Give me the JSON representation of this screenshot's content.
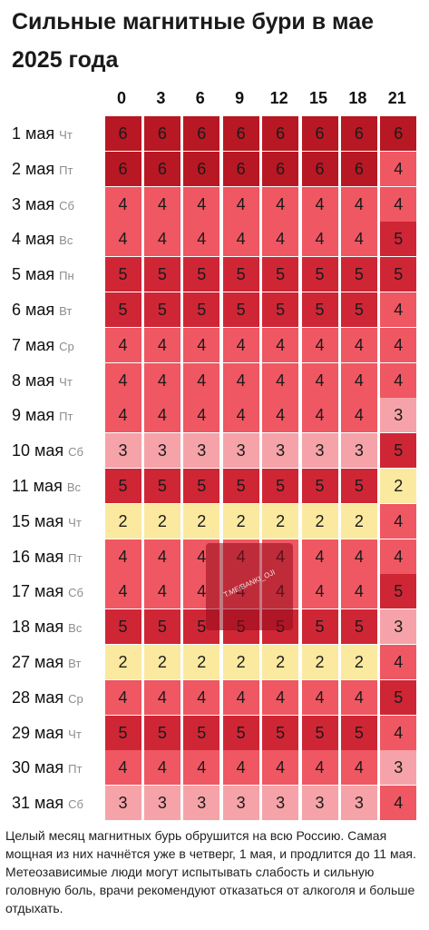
{
  "colors": {
    "2": "#fbe9a0",
    "3": "#f5a3a8",
    "4": "#ef5762",
    "5": "#cf2636",
    "6": "#b81823"
  },
  "chart_data": {
    "type": "heatmap",
    "title": "Сильные магнитные бури в мае 2025 года",
    "xlabel": "",
    "ylabel": "",
    "columns": [
      "0",
      "3",
      "6",
      "9",
      "12",
      "15",
      "18",
      "21"
    ],
    "rows": [
      {
        "date": "1 мая",
        "dow": "Чт",
        "values": [
          6,
          6,
          6,
          6,
          6,
          6,
          6,
          6
        ]
      },
      {
        "date": "2 мая",
        "dow": "Пт",
        "values": [
          6,
          6,
          6,
          6,
          6,
          6,
          6,
          4
        ]
      },
      {
        "date": "3 мая",
        "dow": "Сб",
        "values": [
          4,
          4,
          4,
          4,
          4,
          4,
          4,
          4
        ]
      },
      {
        "date": "4 мая",
        "dow": "Вс",
        "values": [
          4,
          4,
          4,
          4,
          4,
          4,
          4,
          5
        ]
      },
      {
        "date": "5 мая",
        "dow": "Пн",
        "values": [
          5,
          5,
          5,
          5,
          5,
          5,
          5,
          5
        ]
      },
      {
        "date": "6 мая",
        "dow": "Вт",
        "values": [
          5,
          5,
          5,
          5,
          5,
          5,
          5,
          4
        ]
      },
      {
        "date": "7 мая",
        "dow": "Ср",
        "values": [
          4,
          4,
          4,
          4,
          4,
          4,
          4,
          4
        ]
      },
      {
        "date": "8 мая",
        "dow": "Чт",
        "values": [
          4,
          4,
          4,
          4,
          4,
          4,
          4,
          4
        ]
      },
      {
        "date": "9 мая",
        "dow": "Пт",
        "values": [
          4,
          4,
          4,
          4,
          4,
          4,
          4,
          3
        ]
      },
      {
        "date": "10 мая",
        "dow": "Сб",
        "values": [
          3,
          3,
          3,
          3,
          3,
          3,
          3,
          5
        ]
      },
      {
        "date": "11 мая",
        "dow": "Вс",
        "values": [
          5,
          5,
          5,
          5,
          5,
          5,
          5,
          2
        ]
      },
      {
        "date": "15 мая",
        "dow": "Чт",
        "values": [
          2,
          2,
          2,
          2,
          2,
          2,
          2,
          4
        ]
      },
      {
        "date": "16 мая",
        "dow": "Пт",
        "values": [
          4,
          4,
          4,
          4,
          4,
          4,
          4,
          4
        ]
      },
      {
        "date": "17 мая",
        "dow": "Сб",
        "values": [
          4,
          4,
          4,
          4,
          4,
          4,
          4,
          5
        ]
      },
      {
        "date": "18 мая",
        "dow": "Вс",
        "values": [
          5,
          5,
          5,
          5,
          5,
          5,
          5,
          3
        ]
      },
      {
        "date": "27 мая",
        "dow": "Вт",
        "values": [
          2,
          2,
          2,
          2,
          2,
          2,
          2,
          4
        ]
      },
      {
        "date": "28 мая",
        "dow": "Ср",
        "values": [
          4,
          4,
          4,
          4,
          4,
          4,
          4,
          5
        ]
      },
      {
        "date": "29 мая",
        "dow": "Чт",
        "values": [
          5,
          5,
          5,
          5,
          5,
          5,
          5,
          4
        ]
      },
      {
        "date": "30 мая",
        "dow": "Пт",
        "values": [
          4,
          4,
          4,
          4,
          4,
          4,
          4,
          3
        ]
      },
      {
        "date": "31 мая",
        "dow": "Сб",
        "values": [
          3,
          3,
          3,
          3,
          3,
          3,
          3,
          4
        ]
      }
    ]
  },
  "watermark": "T.ME/BANKI_OJI",
  "caption": "Целый месяц магнитных бурь обрушится на всю Россию. Самая мощная из них начнётся уже в четверг, 1 мая, и продлится до 11 мая. Метеозависимые люди могут испытывать слабость и сильную головную боль, врачи рекомендуют отказаться от алкоголя и больше отдыхать."
}
